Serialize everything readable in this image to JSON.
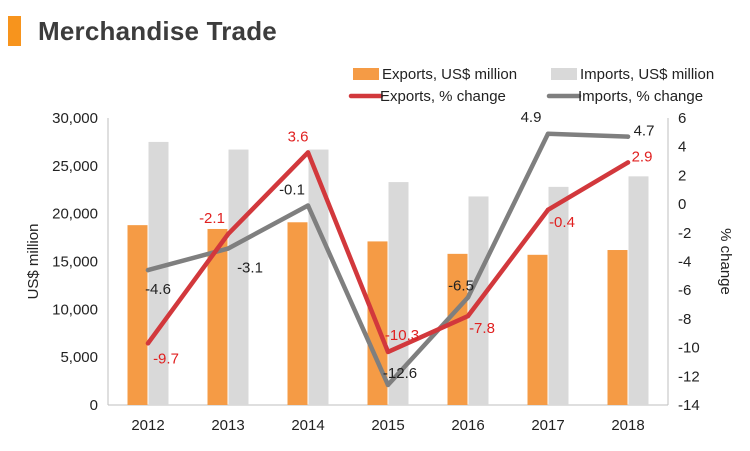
{
  "title": "Merchandise Trade",
  "colors": {
    "accent": "#f7941d",
    "exports_bar": "#f59b45",
    "imports_bar": "#d9d9d9",
    "exports_line": "#d2383c",
    "imports_line": "#7f7f7f",
    "exports_label": "#e02020",
    "imports_label": "#222222"
  },
  "chart_data": {
    "type": "bar",
    "categories": [
      "2012",
      "2013",
      "2014",
      "2015",
      "2016",
      "2017",
      "2018"
    ],
    "series": [
      {
        "name": "Exports, US$ million",
        "kind": "bar",
        "axis": "left",
        "values": [
          18800,
          18400,
          19100,
          17100,
          15800,
          15700,
          16200
        ]
      },
      {
        "name": "Imports, US$ million",
        "kind": "bar",
        "axis": "left",
        "values": [
          27500,
          26700,
          26700,
          23300,
          21800,
          22800,
          23900
        ]
      },
      {
        "name": "Exports, % change",
        "kind": "line",
        "axis": "right",
        "values": [
          -9.7,
          -2.1,
          3.6,
          -10.3,
          -7.8,
          -0.4,
          2.9
        ],
        "labels": [
          "-9.7",
          "-2.1",
          "3.6",
          "-10.3",
          "-7.8",
          "-0.4",
          "2.9"
        ]
      },
      {
        "name": "Imports, % change",
        "kind": "line",
        "axis": "right",
        "values": [
          -4.6,
          -3.1,
          -0.1,
          -12.6,
          -6.5,
          4.9,
          4.7
        ],
        "labels": [
          "-4.6",
          "-3.1",
          "-0.1",
          "-12.6",
          "-6.5",
          "4.9",
          "4.7"
        ]
      }
    ],
    "ylabel": "US$ million",
    "y2label": "% change",
    "ylim": [
      0,
      30000
    ],
    "y2lim": [
      -14,
      6
    ],
    "yticks": [
      "0",
      "5,000",
      "10,000",
      "15,000",
      "20,000",
      "25,000",
      "30,000"
    ],
    "y2ticks": [
      "-14",
      "-12",
      "-10",
      "-8",
      "-6",
      "-4",
      "-2",
      "0",
      "2",
      "4",
      "6"
    ],
    "grid": false,
    "legend": "top-right"
  }
}
